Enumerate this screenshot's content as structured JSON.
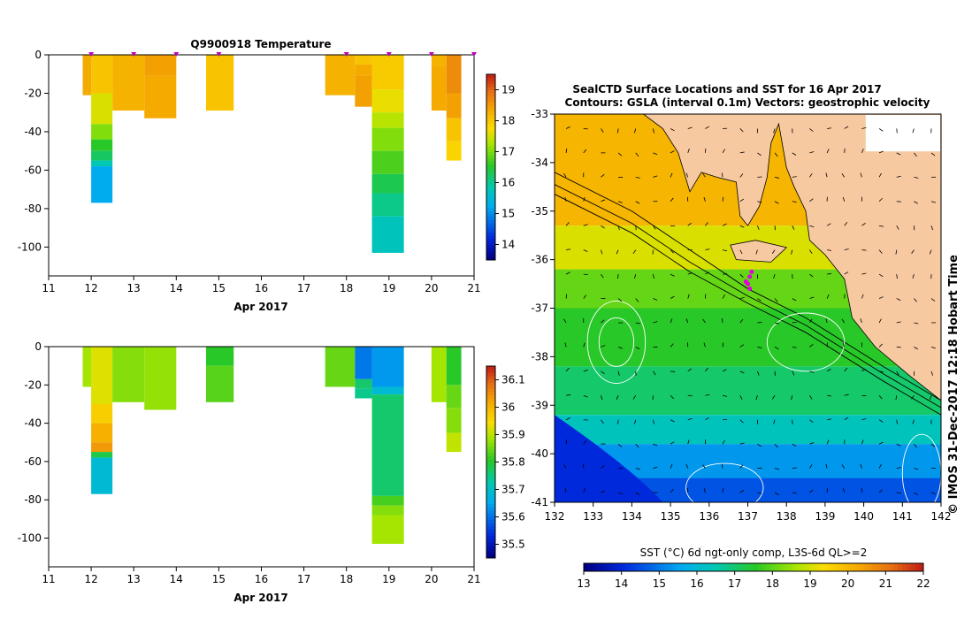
{
  "chart_data": [
    {
      "type": "heatmap",
      "title": "Q9900918  Temperature",
      "xlabel": "Apr 2017",
      "ylabel": "",
      "xlim": [
        11,
        21
      ],
      "ylim": [
        -115,
        0
      ],
      "x_ticks": [
        "11",
        "12",
        "13",
        "14",
        "15",
        "16",
        "17",
        "18",
        "19",
        "20",
        "21"
      ],
      "y_ticks": [
        "0",
        "-20",
        "-40",
        "-60",
        "-80",
        "-100"
      ],
      "colorbar": {
        "min": 13.5,
        "max": 19.5,
        "ticks": [
          "14",
          "15",
          "16",
          "17",
          "18",
          "19"
        ]
      },
      "profile_dates": [
        12.0,
        13.0,
        14.0,
        15.0,
        18.0,
        19.0,
        20.0,
        21.0
      ],
      "profiles": [
        {
          "x0": 11.8,
          "x1": 12.0,
          "depth": 21,
          "levels": [
            {
              "to": 21,
              "value": 18.3
            }
          ]
        },
        {
          "x0": 12.0,
          "x1": 12.5,
          "depth": 77,
          "levels": [
            {
              "to": 20,
              "value": 18.0
            },
            {
              "to": 36,
              "value": 17.5
            },
            {
              "to": 44,
              "value": 17.0
            },
            {
              "to": 50,
              "value": 16.5
            },
            {
              "to": 55,
              "value": 16.2
            },
            {
              "to": 58,
              "value": 15.8
            },
            {
              "to": 77,
              "value": 15.2
            }
          ]
        },
        {
          "x0": 12.5,
          "x1": 13.25,
          "depth": 29,
          "levels": [
            {
              "to": 29,
              "value": 18.2
            }
          ]
        },
        {
          "x0": 13.25,
          "x1": 14.0,
          "depth": 33,
          "levels": [
            {
              "to": 11,
              "value": 18.4
            },
            {
              "to": 33,
              "value": 18.3
            }
          ]
        },
        {
          "x0": 14.7,
          "x1": 15.35,
          "depth": 29,
          "levels": [
            {
              "to": 29,
              "value": 18.0
            }
          ]
        },
        {
          "x0": 17.5,
          "x1": 18.2,
          "depth": 21,
          "levels": [
            {
              "to": 21,
              "value": 18.2
            }
          ]
        },
        {
          "x0": 18.2,
          "x1": 18.6,
          "depth": 27,
          "levels": [
            {
              "to": 5,
              "value": 18.0
            },
            {
              "to": 11,
              "value": 18.3
            },
            {
              "to": 27,
              "value": 18.4
            }
          ]
        },
        {
          "x0": 18.6,
          "x1": 19.35,
          "depth": 103,
          "levels": [
            {
              "to": 18,
              "value": 17.9
            },
            {
              "to": 30,
              "value": 17.6
            },
            {
              "to": 38,
              "value": 17.3
            },
            {
              "to": 50,
              "value": 17.0
            },
            {
              "to": 62,
              "value": 16.7
            },
            {
              "to": 72,
              "value": 16.3
            },
            {
              "to": 84,
              "value": 16.0
            },
            {
              "to": 103,
              "value": 15.7
            }
          ]
        },
        {
          "x0": 20.0,
          "x1": 20.35,
          "depth": 29,
          "levels": [
            {
              "to": 6,
              "value": 18.2
            },
            {
              "to": 29,
              "value": 18.3
            }
          ]
        },
        {
          "x0": 20.35,
          "x1": 20.7,
          "depth": 55,
          "levels": [
            {
              "to": 20,
              "value": 18.6
            },
            {
              "to": 33,
              "value": 18.4
            },
            {
              "to": 45,
              "value": 18.0
            },
            {
              "to": 55,
              "value": 17.8
            }
          ]
        }
      ]
    },
    {
      "type": "heatmap",
      "title": "",
      "xlabel": "Apr 2017",
      "ylabel": "",
      "xlim": [
        11,
        21
      ],
      "ylim": [
        -115,
        0
      ],
      "x_ticks": [
        "11",
        "12",
        "13",
        "14",
        "15",
        "16",
        "17",
        "18",
        "19",
        "20",
        "21"
      ],
      "y_ticks": [
        "0",
        "-20",
        "-40",
        "-60",
        "-80",
        "-100"
      ],
      "colorbar": {
        "min": 35.45,
        "max": 36.15,
        "ticks": [
          "35.5",
          "35.6",
          "35.7",
          "35.8",
          "35.9",
          "36",
          "36.1"
        ]
      },
      "profiles": [
        {
          "x0": 11.8,
          "x1": 12.0,
          "depth": 21,
          "levels": [
            {
              "to": 21,
              "value": 35.88
            }
          ]
        },
        {
          "x0": 12.0,
          "x1": 12.5,
          "depth": 77,
          "levels": [
            {
              "to": 30,
              "value": 35.92
            },
            {
              "to": 40,
              "value": 35.96
            },
            {
              "to": 50,
              "value": 36.0
            },
            {
              "to": 55,
              "value": 36.03
            },
            {
              "to": 58,
              "value": 35.78
            },
            {
              "to": 77,
              "value": 35.68
            }
          ]
        },
        {
          "x0": 12.5,
          "x1": 13.25,
          "depth": 29,
          "levels": [
            {
              "to": 29,
              "value": 35.86
            }
          ]
        },
        {
          "x0": 13.25,
          "x1": 14.0,
          "depth": 33,
          "levels": [
            {
              "to": 33,
              "value": 35.87
            }
          ]
        },
        {
          "x0": 14.7,
          "x1": 15.35,
          "depth": 29,
          "levels": [
            {
              "to": 10,
              "value": 35.8
            },
            {
              "to": 29,
              "value": 35.83
            }
          ]
        },
        {
          "x0": 17.5,
          "x1": 18.2,
          "depth": 21,
          "levels": [
            {
              "to": 21,
              "value": 35.84
            }
          ]
        },
        {
          "x0": 18.2,
          "x1": 18.6,
          "depth": 27,
          "levels": [
            {
              "to": 17,
              "value": 35.6
            },
            {
              "to": 22,
              "value": 35.76
            },
            {
              "to": 27,
              "value": 35.74
            }
          ]
        },
        {
          "x0": 18.6,
          "x1": 19.35,
          "depth": 103,
          "levels": [
            {
              "to": 21,
              "value": 35.63
            },
            {
              "to": 25,
              "value": 35.68
            },
            {
              "to": 78,
              "value": 35.76
            },
            {
              "to": 83,
              "value": 35.82
            },
            {
              "to": 88,
              "value": 35.86
            },
            {
              "to": 103,
              "value": 35.88
            }
          ]
        },
        {
          "x0": 20.0,
          "x1": 20.35,
          "depth": 29,
          "levels": [
            {
              "to": 29,
              "value": 35.88
            }
          ]
        },
        {
          "x0": 20.35,
          "x1": 20.7,
          "depth": 55,
          "levels": [
            {
              "to": 20,
              "value": 35.8
            },
            {
              "to": 32,
              "value": 35.84
            },
            {
              "to": 45,
              "value": 35.86
            },
            {
              "to": 55,
              "value": 35.9
            }
          ]
        }
      ]
    },
    {
      "type": "heatmap",
      "title": "SealCTD Surface Locations and SST for 16 Apr 2017",
      "subtitle": "Contours: GSLA (interval 0.1m) Vectors: geostrophic velocity",
      "xlabel": "",
      "ylabel": "",
      "xlim": [
        132,
        142
      ],
      "ylim": [
        -41,
        -33
      ],
      "x_ticks": [
        "132",
        "133",
        "134",
        "135",
        "136",
        "137",
        "138",
        "139",
        "140",
        "141",
        "142"
      ],
      "y_ticks": [
        "-33",
        "-34",
        "-35",
        "-36",
        "-37",
        "-38",
        "-39",
        "-40",
        "-41"
      ],
      "colorbar": {
        "label": "SST (°C) 6d ngt-only comp, L3S-6d QL>=2",
        "min": 13,
        "max": 22,
        "ticks": [
          "13",
          "14",
          "15",
          "16",
          "17",
          "18",
          "19",
          "20",
          "21",
          "22"
        ]
      },
      "seal_locations": [
        {
          "lon": 137.1,
          "lat": -36.25
        },
        {
          "lon": 137.05,
          "lat": -36.35
        },
        {
          "lon": 137.0,
          "lat": -36.5
        },
        {
          "lon": 137.05,
          "lat": -36.6
        },
        {
          "lon": 136.95,
          "lat": -36.45
        }
      ],
      "side_label": "© IMOS 31-Dec-2017 12:18 Hobart Time"
    }
  ]
}
